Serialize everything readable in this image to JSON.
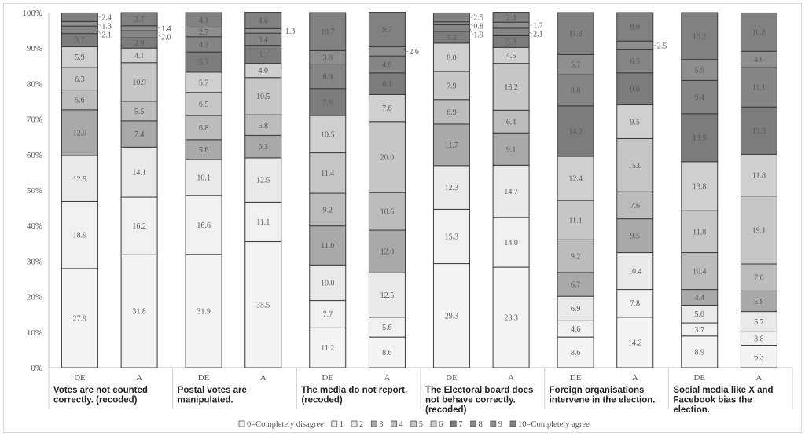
{
  "chart_data": {
    "type": "bar",
    "stacked": true,
    "orientation": "vertical",
    "ylim": [
      0,
      100
    ],
    "y_ticks": [
      "0%",
      "10%",
      "20%",
      "30%",
      "40%",
      "50%",
      "60%",
      "70%",
      "80%",
      "90%",
      "100%"
    ],
    "grid": false,
    "legend_position": "bottom",
    "legend": [
      "0=Completely disagree",
      "1",
      "2",
      "3",
      "4",
      "5",
      "6",
      "7",
      "8",
      "9",
      "10=Completely agree"
    ],
    "colors": [
      "#f4f4f4",
      "#f0f0f0",
      "#e9e9e9",
      "#a9a9a9",
      "#bcbcbc",
      "#c6c6c6",
      "#cfcfcf",
      "#7c7c7c",
      "#858585",
      "#8e8e8e",
      "#818181"
    ],
    "groups": [
      {
        "label": "Votes are not counted correctly. (recoded)",
        "bars": [
          {
            "name": "DE",
            "values": [
              27.9,
              18.9,
              12.9,
              12.9,
              5.6,
              6.3,
              5.9,
              3.7,
              2.1,
              1.3,
              2.4
            ]
          },
          {
            "name": "A",
            "values": [
              31.8,
              16.2,
              14.1,
              7.4,
              5.5,
              10.9,
              4.1,
              2.9,
              2.0,
              1.4,
              3.7
            ]
          }
        ]
      },
      {
        "label": "Postal votes are manipulated.",
        "bars": [
          {
            "name": "DE",
            "values": [
              31.9,
              16.6,
              10.1,
              5.6,
              6.8,
              6.5,
              5.7,
              5.7,
              4.3,
              2.7,
              4.1
            ]
          },
          {
            "name": "A",
            "values": [
              35.5,
              11.1,
              12.5,
              6.3,
              5.8,
              10.5,
              4.0,
              5.1,
              3.4,
              1.3,
              4.6
            ]
          }
        ]
      },
      {
        "label": "The media do not report. (recoded)",
        "bars": [
          {
            "name": "DE",
            "values": [
              11.2,
              7.7,
              10.0,
              11.0,
              9.2,
              11.4,
              10.5,
              7.6,
              6.9,
              3.8,
              10.7
            ]
          },
          {
            "name": "A",
            "values": [
              8.6,
              5.6,
              12.5,
              12.0,
              10.6,
              20.0,
              7.6,
              6.1,
              4.8,
              2.6,
              9.7
            ]
          }
        ]
      },
      {
        "label": "The Electoral board does not behave correctly. (recoded)",
        "bars": [
          {
            "name": "DE",
            "values": [
              29.3,
              15.3,
              12.3,
              11.7,
              6.9,
              7.9,
              8.0,
              3.3,
              1.9,
              0.8,
              2.5
            ]
          },
          {
            "name": "A",
            "values": [
              28.3,
              14.0,
              14.7,
              9.1,
              6.4,
              13.2,
              4.5,
              3.3,
              2.1,
              1.7,
              2.8
            ]
          }
        ]
      },
      {
        "label": "Foreign organisations intervene in the election.",
        "bars": [
          {
            "name": "DE",
            "values": [
              8.6,
              4.6,
              6.9,
              6.7,
              9.2,
              11.1,
              12.4,
              14.2,
              8.8,
              5.7,
              11.8
            ]
          },
          {
            "name": "A",
            "values": [
              14.2,
              7.8,
              10.4,
              9.5,
              7.6,
              15.0,
              9.5,
              9.0,
              6.5,
              2.5,
              8.0
            ]
          }
        ]
      },
      {
        "label": "Social media like X and Facebook bias the election.",
        "bars": [
          {
            "name": "DE",
            "values": [
              8.9,
              3.7,
              5.0,
              4.4,
              10.4,
              11.8,
              13.8,
              13.5,
              9.4,
              5.9,
              13.2
            ]
          },
          {
            "name": "A",
            "values": [
              6.3,
              3.8,
              5.7,
              5.8,
              7.6,
              19.1,
              11.8,
              13.3,
              11.1,
              4.6,
              10.8
            ]
          }
        ]
      }
    ]
  }
}
